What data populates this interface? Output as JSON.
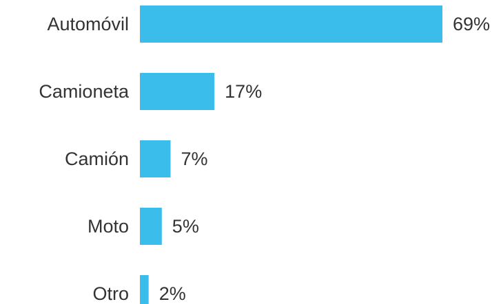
{
  "chart_data": {
    "type": "bar",
    "orientation": "horizontal",
    "categories": [
      "Automóvil",
      "Camioneta",
      "Camión",
      "Moto",
      "Otro"
    ],
    "values": [
      69,
      17,
      7,
      5,
      2
    ],
    "value_labels": [
      "69%",
      "17%",
      "7%",
      "5%",
      "2%"
    ],
    "unit": "%",
    "title": "",
    "xlabel": "",
    "ylabel": "",
    "xlim": [
      0,
      69
    ],
    "grid": false,
    "legend": "none",
    "bar_color": "#3bbdec"
  }
}
